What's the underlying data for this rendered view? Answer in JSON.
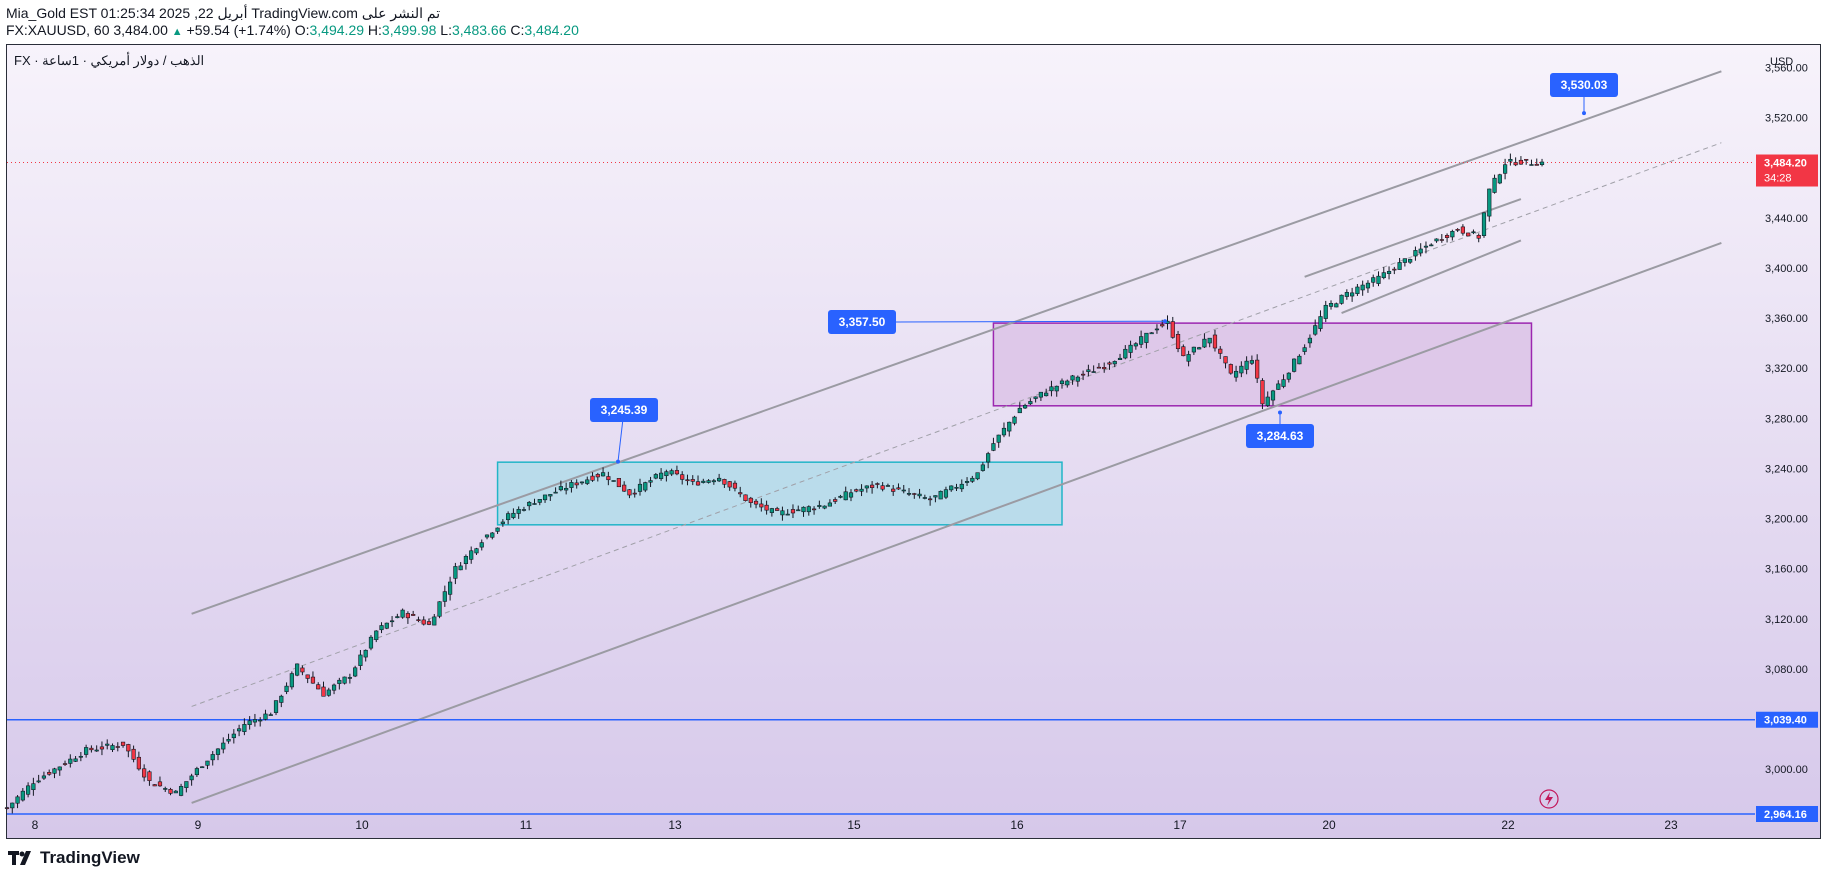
{
  "header": {
    "line1": "Mia_Gold EST 01:25:34 2025 ,22 أبريل TradingView.com تم النشر على",
    "symbol": "FX:XAUUSD, 60",
    "last": "3,484.00",
    "change": "+59.54 (+1.74%)",
    "o_label": "O:",
    "o_val": "3,494.29",
    "h_label": "H:",
    "h_val": "3,499.98",
    "l_label": "L:",
    "l_val": "3,483.66",
    "c_label": "C:",
    "c_val": "3,484.20"
  },
  "pane_title": "FX · الذهب / دولار أمريكي · 1ساعة",
  "footer": {
    "brand": "TradingView"
  },
  "chart_data": {
    "type": "candlestick",
    "currency": "USD",
    "ylim": [
      2945,
      3578
    ],
    "y_ticks": [
      "3,000.00",
      "3,040.00",
      "3,080.00",
      "3,120.00",
      "3,160.00",
      "3,200.00",
      "3,240.00",
      "3,280.00",
      "3,320.00",
      "3,360.00",
      "3,400.00",
      "3,440.00",
      "3,480.00",
      "3,520.00",
      "3,560.00"
    ],
    "x_ticks": [
      "8",
      "9",
      "10",
      "11",
      "13",
      "15",
      "16",
      "17",
      "20",
      "22",
      "23"
    ],
    "price_tag": {
      "value": "3,484.20",
      "countdown": "34:28",
      "color": "#f23645"
    },
    "levels": [
      {
        "value": 3039.4,
        "label": "3,039.40",
        "color": "#2962ff"
      },
      {
        "value": 2964.16,
        "label": "2,964.16",
        "color": "#2962ff"
      }
    ],
    "callouts": [
      {
        "label": "3,530.03",
        "value": 3530.03
      },
      {
        "label": "3,357.50",
        "value": 3357.5
      },
      {
        "label": "3,245.39",
        "value": 3245.39
      },
      {
        "label": "3,284.63",
        "value": 3284.63
      }
    ],
    "zones": [
      {
        "name": "cyan-range",
        "from_bar": 93,
        "to_bar": 200,
        "low": 3195,
        "high": 3245,
        "color": "#b3dcea"
      },
      {
        "name": "purple-range",
        "from_bar": 187,
        "to_bar": 289,
        "low": 3290,
        "high": 3356,
        "color": "#dcc3e6"
      }
    ],
    "channel_lines": [
      {
        "from": [
          35,
          3124
        ],
        "to": [
          325,
          3557
        ]
      },
      {
        "from": [
          35,
          2973
        ],
        "to": [
          325,
          3420
        ]
      },
      {
        "from": [
          35,
          3050
        ],
        "to": [
          325,
          3500
        ],
        "dashed": true
      },
      {
        "from": [
          246,
          3393
        ],
        "to": [
          287,
          3455
        ]
      },
      {
        "from": [
          253,
          3364
        ],
        "to": [
          287,
          3422
        ]
      }
    ],
    "bar_count": 292,
    "close_anchors": [
      [
        0,
        2969
      ],
      [
        5,
        2990
      ],
      [
        15,
        3015
      ],
      [
        22,
        3020
      ],
      [
        27,
        2990
      ],
      [
        32,
        2981
      ],
      [
        37,
        3004
      ],
      [
        45,
        3036
      ],
      [
        50,
        3045
      ],
      [
        55,
        3082
      ],
      [
        60,
        3060
      ],
      [
        65,
        3075
      ],
      [
        70,
        3110
      ],
      [
        75,
        3125
      ],
      [
        80,
        3115
      ],
      [
        85,
        3160
      ],
      [
        90,
        3183
      ],
      [
        95,
        3202
      ],
      [
        100,
        3214
      ],
      [
        107,
        3227
      ],
      [
        113,
        3236
      ],
      [
        118,
        3220
      ],
      [
        125,
        3238
      ],
      [
        130,
        3228
      ],
      [
        135,
        3233
      ],
      [
        141,
        3212
      ],
      [
        146,
        3204
      ],
      [
        155,
        3211
      ],
      [
        160,
        3221
      ],
      [
        165,
        3227
      ],
      [
        170,
        3221
      ],
      [
        175,
        3215
      ],
      [
        180,
        3226
      ],
      [
        184,
        3236
      ],
      [
        187,
        3260
      ],
      [
        192,
        3288
      ],
      [
        197,
        3302
      ],
      [
        202,
        3312
      ],
      [
        208,
        3322
      ],
      [
        213,
        3336
      ],
      [
        218,
        3353
      ],
      [
        220,
        3356
      ],
      [
        223,
        3328
      ],
      [
        228,
        3345
      ],
      [
        232,
        3314
      ],
      [
        236,
        3328
      ],
      [
        238,
        3292
      ],
      [
        242,
        3312
      ],
      [
        246,
        3338
      ],
      [
        250,
        3368
      ],
      [
        255,
        3382
      ],
      [
        260,
        3392
      ],
      [
        265,
        3406
      ],
      [
        270,
        3420
      ],
      [
        275,
        3431
      ],
      [
        279,
        3425
      ],
      [
        281,
        3462
      ],
      [
        284,
        3484
      ],
      [
        287,
        3485
      ],
      [
        288,
        3484.2
      ]
    ]
  }
}
